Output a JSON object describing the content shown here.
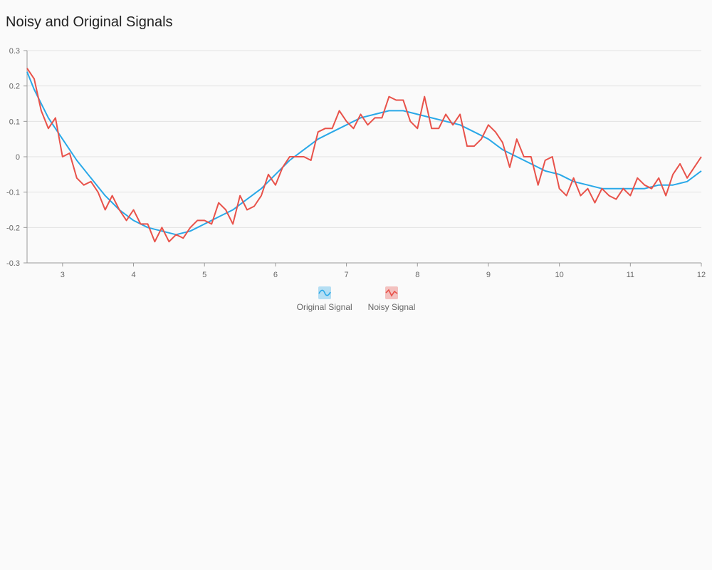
{
  "chart_data": {
    "type": "line",
    "title": "Noisy and Original Signals",
    "xlabel": "",
    "ylabel": "",
    "xlim": [
      2.5,
      12
    ],
    "ylim": [
      -0.3,
      0.3
    ],
    "x_ticks": [
      3,
      4,
      5,
      6,
      7,
      8,
      9,
      10,
      11,
      12
    ],
    "y_ticks": [
      0.3,
      0.2,
      0.1,
      0,
      -0.1,
      -0.2,
      -0.3
    ],
    "grid": true,
    "legend_position": "bottom",
    "series": [
      {
        "name": "Original Signal",
        "color": "#29a8e8",
        "icon": "wave-icon",
        "points": [
          [
            2.5,
            0.24
          ],
          [
            2.6,
            0.19
          ],
          [
            2.8,
            0.11
          ],
          [
            3.0,
            0.05
          ],
          [
            3.2,
            -0.01
          ],
          [
            3.4,
            -0.06
          ],
          [
            3.6,
            -0.11
          ],
          [
            3.8,
            -0.15
          ],
          [
            4.0,
            -0.18
          ],
          [
            4.2,
            -0.2
          ],
          [
            4.4,
            -0.21
          ],
          [
            4.6,
            -0.22
          ],
          [
            4.8,
            -0.21
          ],
          [
            5.0,
            -0.19
          ],
          [
            5.2,
            -0.17
          ],
          [
            5.4,
            -0.15
          ],
          [
            5.6,
            -0.12
          ],
          [
            5.8,
            -0.09
          ],
          [
            6.0,
            -0.05
          ],
          [
            6.2,
            -0.01
          ],
          [
            6.4,
            0.02
          ],
          [
            6.6,
            0.05
          ],
          [
            6.8,
            0.07
          ],
          [
            7.0,
            0.09
          ],
          [
            7.2,
            0.11
          ],
          [
            7.4,
            0.12
          ],
          [
            7.6,
            0.13
          ],
          [
            7.8,
            0.13
          ],
          [
            8.0,
            0.12
          ],
          [
            8.2,
            0.11
          ],
          [
            8.4,
            0.1
          ],
          [
            8.6,
            0.09
          ],
          [
            8.8,
            0.07
          ],
          [
            9.0,
            0.05
          ],
          [
            9.2,
            0.02
          ],
          [
            9.4,
            0.0
          ],
          [
            9.6,
            -0.02
          ],
          [
            9.8,
            -0.04
          ],
          [
            10.0,
            -0.05
          ],
          [
            10.2,
            -0.07
          ],
          [
            10.4,
            -0.08
          ],
          [
            10.6,
            -0.09
          ],
          [
            10.8,
            -0.09
          ],
          [
            11.0,
            -0.09
          ],
          [
            11.2,
            -0.09
          ],
          [
            11.4,
            -0.08
          ],
          [
            11.6,
            -0.08
          ],
          [
            11.8,
            -0.07
          ],
          [
            12.0,
            -0.04
          ]
        ]
      },
      {
        "name": "Noisy Signal",
        "color": "#e8524a",
        "icon": "noisy-wave-icon",
        "points": [
          [
            2.5,
            0.25
          ],
          [
            2.6,
            0.22
          ],
          [
            2.7,
            0.13
          ],
          [
            2.8,
            0.08
          ],
          [
            2.9,
            0.11
          ],
          [
            3.0,
            0.0
          ],
          [
            3.1,
            0.01
          ],
          [
            3.2,
            -0.06
          ],
          [
            3.3,
            -0.08
          ],
          [
            3.4,
            -0.07
          ],
          [
            3.5,
            -0.1
          ],
          [
            3.6,
            -0.15
          ],
          [
            3.7,
            -0.11
          ],
          [
            3.8,
            -0.15
          ],
          [
            3.9,
            -0.18
          ],
          [
            4.0,
            -0.15
          ],
          [
            4.1,
            -0.19
          ],
          [
            4.2,
            -0.19
          ],
          [
            4.3,
            -0.24
          ],
          [
            4.4,
            -0.2
          ],
          [
            4.5,
            -0.24
          ],
          [
            4.6,
            -0.22
          ],
          [
            4.7,
            -0.23
          ],
          [
            4.8,
            -0.2
          ],
          [
            4.9,
            -0.18
          ],
          [
            5.0,
            -0.18
          ],
          [
            5.1,
            -0.19
          ],
          [
            5.2,
            -0.13
          ],
          [
            5.3,
            -0.15
          ],
          [
            5.4,
            -0.19
          ],
          [
            5.5,
            -0.11
          ],
          [
            5.6,
            -0.15
          ],
          [
            5.7,
            -0.14
          ],
          [
            5.8,
            -0.11
          ],
          [
            5.9,
            -0.05
          ],
          [
            6.0,
            -0.08
          ],
          [
            6.1,
            -0.03
          ],
          [
            6.2,
            0.0
          ],
          [
            6.3,
            0.0
          ],
          [
            6.4,
            0.0
          ],
          [
            6.5,
            -0.01
          ],
          [
            6.6,
            0.07
          ],
          [
            6.7,
            0.08
          ],
          [
            6.8,
            0.08
          ],
          [
            6.9,
            0.13
          ],
          [
            7.0,
            0.1
          ],
          [
            7.1,
            0.08
          ],
          [
            7.2,
            0.12
          ],
          [
            7.3,
            0.09
          ],
          [
            7.4,
            0.11
          ],
          [
            7.5,
            0.11
          ],
          [
            7.6,
            0.17
          ],
          [
            7.7,
            0.16
          ],
          [
            7.8,
            0.16
          ],
          [
            7.9,
            0.1
          ],
          [
            8.0,
            0.08
          ],
          [
            8.1,
            0.17
          ],
          [
            8.2,
            0.08
          ],
          [
            8.3,
            0.08
          ],
          [
            8.4,
            0.12
          ],
          [
            8.5,
            0.09
          ],
          [
            8.6,
            0.12
          ],
          [
            8.7,
            0.03
          ],
          [
            8.8,
            0.03
          ],
          [
            8.9,
            0.05
          ],
          [
            9.0,
            0.09
          ],
          [
            9.1,
            0.07
          ],
          [
            9.2,
            0.04
          ],
          [
            9.3,
            -0.03
          ],
          [
            9.4,
            0.05
          ],
          [
            9.5,
            0.0
          ],
          [
            9.6,
            0.0
          ],
          [
            9.7,
            -0.08
          ],
          [
            9.8,
            -0.01
          ],
          [
            9.9,
            0.0
          ],
          [
            10.0,
            -0.09
          ],
          [
            10.1,
            -0.11
          ],
          [
            10.2,
            -0.06
          ],
          [
            10.3,
            -0.11
          ],
          [
            10.4,
            -0.09
          ],
          [
            10.5,
            -0.13
          ],
          [
            10.6,
            -0.09
          ],
          [
            10.7,
            -0.11
          ],
          [
            10.8,
            -0.12
          ],
          [
            10.9,
            -0.09
          ],
          [
            11.0,
            -0.11
          ],
          [
            11.1,
            -0.06
          ],
          [
            11.2,
            -0.08
          ],
          [
            11.3,
            -0.09
          ],
          [
            11.4,
            -0.06
          ],
          [
            11.5,
            -0.11
          ],
          [
            11.6,
            -0.05
          ],
          [
            11.7,
            -0.02
          ],
          [
            11.8,
            -0.06
          ],
          [
            11.9,
            -0.03
          ],
          [
            12.0,
            0.0
          ]
        ]
      }
    ]
  }
}
